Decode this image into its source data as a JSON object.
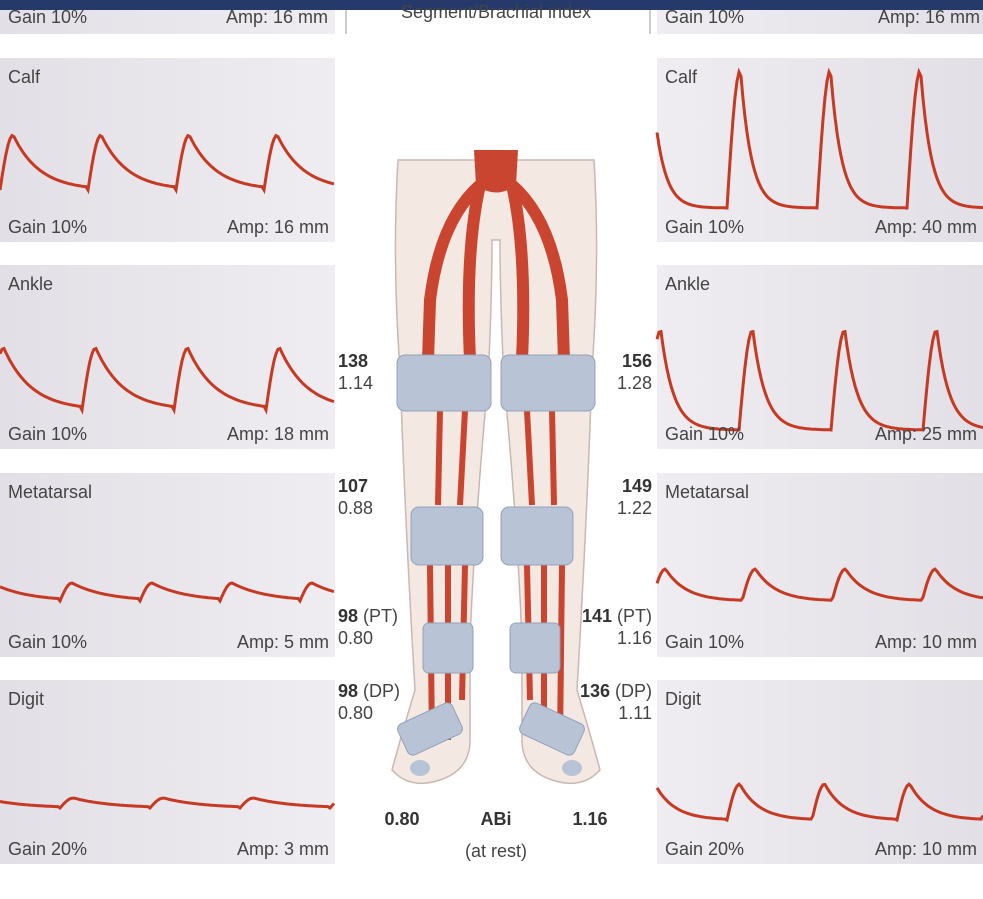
{
  "header": {
    "left": {
      "gain": "Gain 10%",
      "amp": "Amp: 16 mm"
    },
    "center": "Segment/Brachial index",
    "right": {
      "gain": "Gain 10%",
      "amp": "Amp: 16 mm"
    }
  },
  "left_panels": [
    {
      "label": "Calf",
      "gain": "Gain 10%",
      "amp": "Amp: 16 mm"
    },
    {
      "label": "Ankle",
      "gain": "Gain 10%",
      "amp": "Amp: 18 mm"
    },
    {
      "label": "Metatarsal",
      "gain": "Gain 10%",
      "amp": "Amp: 5 mm"
    },
    {
      "label": "Digit",
      "gain": "Gain 20%",
      "amp": "Amp: 3 mm"
    }
  ],
  "right_panels": [
    {
      "label": "Calf",
      "gain": "Gain 10%",
      "amp": "Amp: 40 mm"
    },
    {
      "label": "Ankle",
      "gain": "Gain 10%",
      "amp": "Amp: 25 mm"
    },
    {
      "label": "Metatarsal",
      "gain": "Gain 10%",
      "amp": "Amp: 10 mm"
    },
    {
      "label": "Digit",
      "gain": "Gain 20%",
      "amp": "Amp: 10 mm"
    }
  ],
  "left_readings": [
    {
      "pressure": "138",
      "index": "1.14"
    },
    {
      "pressure": "107",
      "index": "0.88"
    },
    {
      "pressure": "98",
      "site": "(PT)",
      "index": "0.80"
    },
    {
      "pressure": "98",
      "site": "(DP)",
      "index": "0.80"
    }
  ],
  "right_readings": [
    {
      "pressure": "156",
      "index": "1.28"
    },
    {
      "pressure": "149",
      "index": "1.22"
    },
    {
      "pressure": "141",
      "site": "(PT)",
      "index": "1.16"
    },
    {
      "pressure": "136",
      "site": "(DP)",
      "index": "1.11"
    }
  ],
  "abi": {
    "left": "0.80",
    "label": "ABi",
    "note": "(at rest)",
    "right": "1.16"
  }
}
